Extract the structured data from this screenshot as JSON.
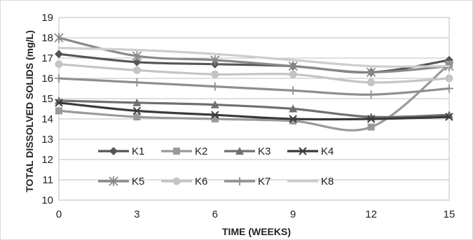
{
  "chart_data": {
    "type": "line",
    "xlabel": "TIME (WEEKS)",
    "ylabel": "TOTAL DISSOLVED SOLIDS (mg/L)",
    "x": [
      0,
      3,
      6,
      9,
      12,
      15
    ],
    "ylim": [
      10,
      19
    ],
    "yticks": [
      "10",
      "11",
      "12",
      "13",
      "14",
      "15",
      "16",
      "17",
      "18",
      "19"
    ],
    "xticks": [
      "0",
      "3",
      "6",
      "9",
      "12",
      "15"
    ],
    "grid": "horizontal",
    "legend_position": "inside-lower-left",
    "series": [
      {
        "name": "K1",
        "marker": "diamond",
        "color": "#555555",
        "values": [
          17.2,
          16.8,
          16.7,
          16.6,
          16.3,
          16.9
        ]
      },
      {
        "name": "K2",
        "marker": "square",
        "color": "#9a9a9a",
        "values": [
          14.4,
          14.1,
          14.0,
          13.9,
          13.6,
          16.7
        ]
      },
      {
        "name": "K3",
        "marker": "triangle",
        "color": "#6f6f6f",
        "values": [
          14.9,
          14.8,
          14.7,
          14.5,
          14.1,
          14.2
        ]
      },
      {
        "name": "K4",
        "marker": "x",
        "color": "#3a3a3a",
        "values": [
          14.8,
          14.4,
          14.2,
          14.0,
          14.0,
          14.1
        ]
      },
      {
        "name": "K5",
        "marker": "star",
        "color": "#888888",
        "values": [
          18.0,
          17.1,
          16.9,
          16.6,
          16.3,
          16.6
        ]
      },
      {
        "name": "K6",
        "marker": "circle",
        "color": "#c4c4c4",
        "values": [
          16.7,
          16.4,
          16.2,
          16.2,
          15.8,
          16.0
        ]
      },
      {
        "name": "K7",
        "marker": "plus",
        "color": "#8e8e8e",
        "values": [
          16.0,
          15.8,
          15.6,
          15.4,
          15.2,
          15.5
        ]
      },
      {
        "name": "K8",
        "marker": "none",
        "color": "#cdcdcd",
        "values": [
          17.5,
          17.4,
          17.2,
          16.9,
          16.6,
          16.6
        ]
      }
    ]
  }
}
